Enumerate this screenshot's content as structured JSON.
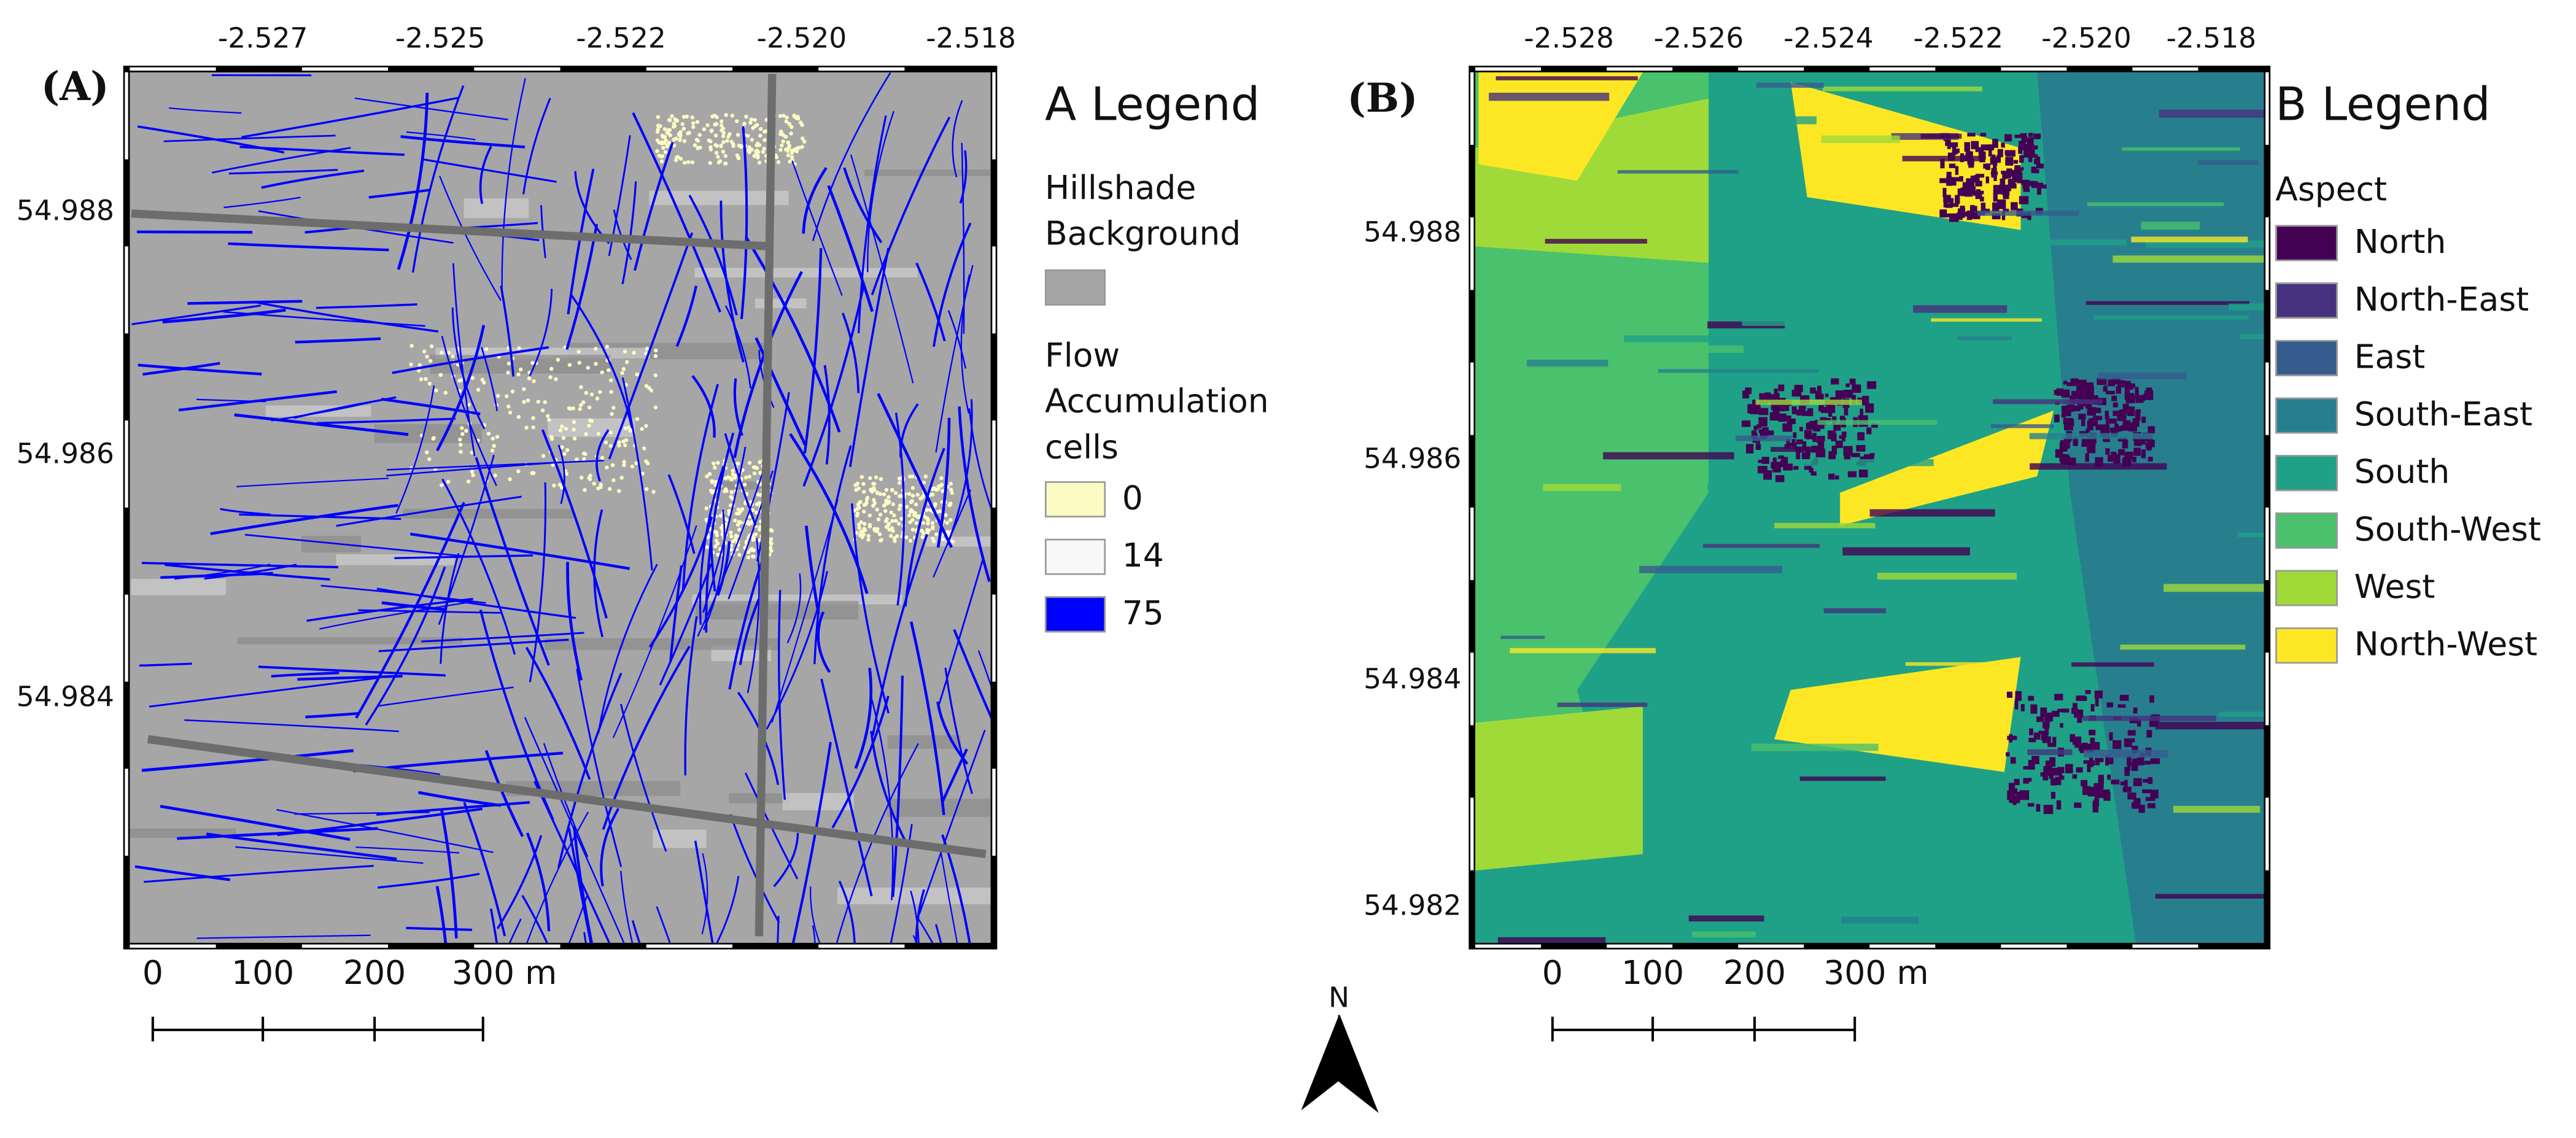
{
  "panel_a": {
    "label": "(A)",
    "x_ticks": [
      "-2.527",
      "-2.525",
      "-2.522",
      "-2.520",
      "-2.518"
    ],
    "y_ticks": [
      "54.988",
      "54.986",
      "54.984"
    ],
    "legend": {
      "title": "A Legend",
      "hillshade": {
        "title": "Hillshade Background",
        "color": "#a6a6a6"
      },
      "flow": {
        "title": "Flow Accumulation cells",
        "items": [
          {
            "label": "0",
            "color": "#fdfbc4"
          },
          {
            "label": "14",
            "color": "#f8f8f8"
          },
          {
            "label": "75",
            "color": "#0000ff"
          }
        ]
      }
    },
    "scale_bar": [
      "0",
      "100",
      "200",
      "300 m"
    ]
  },
  "panel_b": {
    "label": "(B)",
    "x_ticks": [
      "-2.528",
      "-2.526",
      "-2.524",
      "-2.522",
      "-2.520",
      "-2.518"
    ],
    "y_ticks": [
      "54.988",
      "54.986",
      "54.984",
      "54.982"
    ],
    "legend": {
      "title": "B Legend",
      "subtitle": "Aspect",
      "items": [
        {
          "label": "North",
          "color": "#440154"
        },
        {
          "label": "North-East",
          "color": "#46327e"
        },
        {
          "label": "East",
          "color": "#365c8d"
        },
        {
          "label": "South-East",
          "color": "#277f8e"
        },
        {
          "label": "South",
          "color": "#1fa187"
        },
        {
          "label": "South-West",
          "color": "#4ac16d"
        },
        {
          "label": "West",
          "color": "#a0da39"
        },
        {
          "label": "North-West",
          "color": "#fde725"
        }
      ]
    },
    "scale_bar": [
      "0",
      "100",
      "200",
      "300 m"
    ]
  },
  "north_arrow": {
    "label": "N"
  }
}
